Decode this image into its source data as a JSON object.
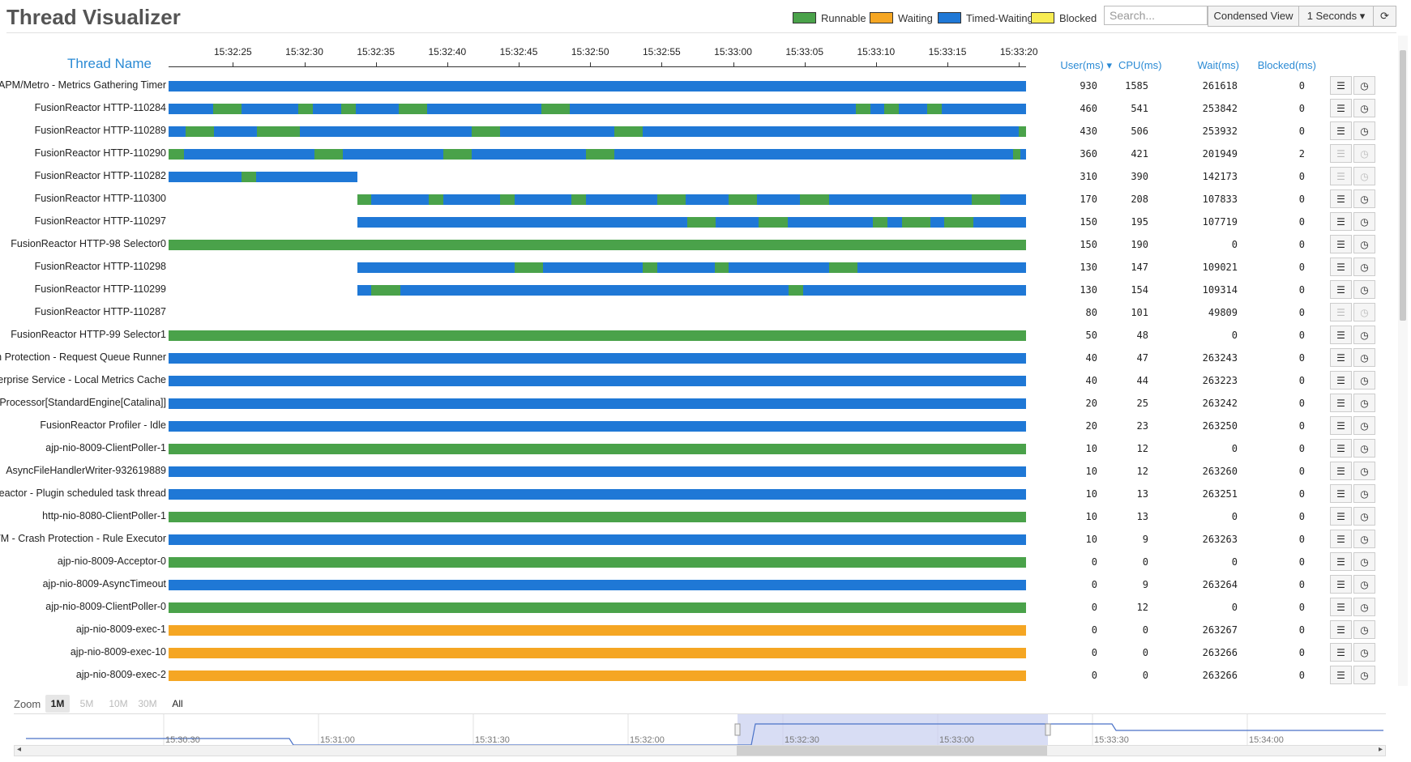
{
  "app": {
    "title": "Thread Visualizer"
  },
  "legend": [
    {
      "label": "Runnable",
      "color": "#4aa24a"
    },
    {
      "label": "Waiting",
      "color": "#f5a623"
    },
    {
      "label": "Timed-Waiting",
      "color": "#1f78d6"
    },
    {
      "label": "Blocked",
      "color": "#f8ec52"
    }
  ],
  "toolbar": {
    "search_placeholder": "Search...",
    "condensed_label": "Condensed View",
    "interval_label": "1 Seconds",
    "refresh_icon": "refresh-icon"
  },
  "columns": {
    "thread_name": "Thread Name",
    "user": "User(ms)",
    "cpu": "CPU(ms)",
    "wait": "Wait(ms)",
    "blocked": "Blocked(ms)"
  },
  "time_ticks": [
    "15:32:25",
    "15:32:30",
    "15:32:35",
    "15:32:40",
    "15:32:45",
    "15:32:50",
    "15:32:55",
    "15:33:00",
    "15:33:05",
    "15:33:10",
    "15:33:15",
    "15:33:20"
  ],
  "timeline": {
    "start": 20.5,
    "end": 80.5
  },
  "threads": [
    {
      "name": "FusionReactor APM/Metro - Metrics Gathering Timer",
      "user": "930",
      "cpu": "1585",
      "wait": "261618",
      "blocked": "0",
      "enabled": true,
      "segs": [
        [
          20.5,
          80.5,
          "T"
        ]
      ]
    },
    {
      "name": "FusionReactor HTTP-110284",
      "user": "460",
      "cpu": "541",
      "wait": "253842",
      "blocked": "0",
      "enabled": true,
      "segs": [
        [
          20.5,
          23.6,
          "T"
        ],
        [
          23.6,
          25.6,
          "R"
        ],
        [
          25.6,
          29.6,
          "T"
        ],
        [
          29.6,
          30.6,
          "R"
        ],
        [
          30.6,
          32.6,
          "T"
        ],
        [
          32.6,
          33.6,
          "R"
        ],
        [
          33.6,
          36.6,
          "T"
        ],
        [
          36.6,
          38.6,
          "R"
        ],
        [
          38.6,
          46.6,
          "T"
        ],
        [
          46.6,
          48.6,
          "R"
        ],
        [
          48.6,
          68.6,
          "T"
        ],
        [
          68.6,
          69.6,
          "R"
        ],
        [
          69.6,
          70.6,
          "T"
        ],
        [
          70.6,
          71.6,
          "R"
        ],
        [
          71.6,
          73.6,
          "T"
        ],
        [
          73.6,
          74.6,
          "R"
        ],
        [
          74.6,
          80.5,
          "T"
        ]
      ]
    },
    {
      "name": "FusionReactor HTTP-110289",
      "user": "430",
      "cpu": "506",
      "wait": "253932",
      "blocked": "0",
      "enabled": true,
      "segs": [
        [
          20.5,
          21.7,
          "T"
        ],
        [
          21.7,
          23.7,
          "R"
        ],
        [
          23.7,
          26.7,
          "T"
        ],
        [
          26.7,
          29.7,
          "R"
        ],
        [
          29.7,
          41.7,
          "T"
        ],
        [
          41.7,
          43.7,
          "R"
        ],
        [
          43.7,
          51.7,
          "T"
        ],
        [
          51.7,
          53.7,
          "R"
        ],
        [
          53.7,
          80.0,
          "T"
        ],
        [
          80.0,
          80.5,
          "R"
        ]
      ]
    },
    {
      "name": "FusionReactor HTTP-110290",
      "user": "360",
      "cpu": "421",
      "wait": "201949",
      "blocked": "2",
      "enabled": false,
      "segs": [
        [
          20.5,
          21.6,
          "R"
        ],
        [
          21.6,
          30.7,
          "T"
        ],
        [
          30.7,
          32.7,
          "R"
        ],
        [
          32.7,
          39.7,
          "T"
        ],
        [
          39.7,
          41.7,
          "R"
        ],
        [
          41.7,
          49.7,
          "T"
        ],
        [
          49.7,
          51.7,
          "R"
        ],
        [
          51.7,
          79.6,
          "T"
        ],
        [
          79.6,
          80.1,
          "R"
        ],
        [
          80.1,
          80.5,
          "T"
        ]
      ]
    },
    {
      "name": "FusionReactor HTTP-110282",
      "user": "310",
      "cpu": "390",
      "wait": "142173",
      "blocked": "0",
      "enabled": false,
      "segs": [
        [
          20.5,
          25.6,
          "T"
        ],
        [
          25.6,
          26.6,
          "R"
        ],
        [
          26.6,
          33.7,
          "T"
        ]
      ]
    },
    {
      "name": "FusionReactor HTTP-110300",
      "user": "170",
      "cpu": "208",
      "wait": "107833",
      "blocked": "0",
      "enabled": true,
      "segs": [
        [
          33.7,
          34.7,
          "R"
        ],
        [
          34.7,
          38.7,
          "T"
        ],
        [
          38.7,
          39.7,
          "R"
        ],
        [
          39.7,
          43.7,
          "T"
        ],
        [
          43.7,
          44.7,
          "R"
        ],
        [
          44.7,
          48.7,
          "T"
        ],
        [
          48.7,
          49.7,
          "R"
        ],
        [
          49.7,
          54.7,
          "T"
        ],
        [
          54.7,
          56.7,
          "R"
        ],
        [
          56.7,
          59.7,
          "T"
        ],
        [
          59.7,
          61.7,
          "R"
        ],
        [
          61.7,
          64.7,
          "T"
        ],
        [
          64.7,
          66.7,
          "R"
        ],
        [
          66.7,
          76.7,
          "T"
        ],
        [
          76.7,
          78.7,
          "R"
        ],
        [
          78.7,
          80.5,
          "T"
        ]
      ]
    },
    {
      "name": "FusionReactor HTTP-110297",
      "user": "150",
      "cpu": "195",
      "wait": "107719",
      "blocked": "0",
      "enabled": true,
      "segs": [
        [
          33.7,
          56.8,
          "T"
        ],
        [
          56.8,
          58.8,
          "R"
        ],
        [
          58.8,
          61.8,
          "T"
        ],
        [
          61.8,
          63.8,
          "R"
        ],
        [
          63.8,
          69.8,
          "T"
        ],
        [
          69.8,
          70.8,
          "R"
        ],
        [
          70.8,
          71.8,
          "T"
        ],
        [
          71.8,
          73.8,
          "R"
        ],
        [
          73.8,
          74.8,
          "T"
        ],
        [
          74.8,
          76.8,
          "R"
        ],
        [
          76.8,
          80.5,
          "T"
        ]
      ]
    },
    {
      "name": "FusionReactor HTTP-98 Selector0",
      "user": "150",
      "cpu": "190",
      "wait": "0",
      "blocked": "0",
      "enabled": true,
      "segs": [
        [
          20.5,
          80.5,
          "R"
        ]
      ]
    },
    {
      "name": "FusionReactor HTTP-110298",
      "user": "130",
      "cpu": "147",
      "wait": "109021",
      "blocked": "0",
      "enabled": true,
      "segs": [
        [
          33.7,
          44.7,
          "T"
        ],
        [
          44.7,
          46.7,
          "R"
        ],
        [
          46.7,
          53.7,
          "T"
        ],
        [
          53.7,
          54.7,
          "R"
        ],
        [
          54.7,
          58.7,
          "T"
        ],
        [
          58.7,
          59.7,
          "R"
        ],
        [
          59.7,
          66.7,
          "T"
        ],
        [
          66.7,
          68.7,
          "R"
        ],
        [
          68.7,
          80.5,
          "T"
        ]
      ]
    },
    {
      "name": "FusionReactor HTTP-110299",
      "user": "130",
      "cpu": "154",
      "wait": "109314",
      "blocked": "0",
      "enabled": true,
      "segs": [
        [
          33.7,
          34.7,
          "T"
        ],
        [
          34.7,
          36.7,
          "R"
        ],
        [
          36.7,
          63.9,
          "T"
        ],
        [
          63.9,
          64.9,
          "R"
        ],
        [
          64.9,
          80.5,
          "T"
        ]
      ]
    },
    {
      "name": "FusionReactor HTTP-110287",
      "user": "80",
      "cpu": "101",
      "wait": "49809",
      "blocked": "0",
      "enabled": false,
      "segs": []
    },
    {
      "name": "FusionReactor HTTP-99 Selector1",
      "user": "50",
      "cpu": "48",
      "wait": "0",
      "blocked": "0",
      "enabled": true,
      "segs": [
        [
          20.5,
          80.5,
          "R"
        ]
      ]
    },
    {
      "name": "FusionReactor Crash Protection - Request Queue Runner",
      "user": "40",
      "cpu": "47",
      "wait": "263243",
      "blocked": "0",
      "enabled": true,
      "segs": [
        [
          20.5,
          80.5,
          "T"
        ]
      ]
    },
    {
      "name": "FusionReactor Enterprise Service - Local Metrics Cache",
      "user": "40",
      "cpu": "44",
      "wait": "263223",
      "blocked": "0",
      "enabled": true,
      "segs": [
        [
          20.5,
          80.5,
          "T"
        ]
      ]
    },
    {
      "name": "ContainerBackgroundProcessor[StandardEngine[Catalina]]",
      "user": "20",
      "cpu": "25",
      "wait": "263242",
      "blocked": "0",
      "enabled": true,
      "segs": [
        [
          20.5,
          80.5,
          "T"
        ]
      ]
    },
    {
      "name": "FusionReactor Profiler - Idle",
      "user": "20",
      "cpu": "23",
      "wait": "263250",
      "blocked": "0",
      "enabled": true,
      "segs": [
        [
          20.5,
          80.5,
          "T"
        ]
      ]
    },
    {
      "name": "ajp-nio-8009-ClientPoller-1",
      "user": "10",
      "cpu": "12",
      "wait": "0",
      "blocked": "0",
      "enabled": true,
      "segs": [
        [
          20.5,
          80.5,
          "R"
        ]
      ]
    },
    {
      "name": "AsyncFileHandlerWriter-932619889",
      "user": "10",
      "cpu": "12",
      "wait": "263260",
      "blocked": "0",
      "enabled": true,
      "segs": [
        [
          20.5,
          80.5,
          "T"
        ]
      ]
    },
    {
      "name": "FusionReactor - Plugin scheduled task thread",
      "user": "10",
      "cpu": "13",
      "wait": "263251",
      "blocked": "0",
      "enabled": true,
      "segs": [
        [
          20.5,
          80.5,
          "T"
        ]
      ]
    },
    {
      "name": "http-nio-8080-ClientPoller-1",
      "user": "10",
      "cpu": "13",
      "wait": "0",
      "blocked": "0",
      "enabled": true,
      "segs": [
        [
          20.5,
          80.5,
          "R"
        ]
      ]
    },
    {
      "name": "FusionReactor JVM - Crash Protection - Rule Executor",
      "user": "10",
      "cpu": "9",
      "wait": "263263",
      "blocked": "0",
      "enabled": true,
      "segs": [
        [
          20.5,
          80.5,
          "T"
        ]
      ]
    },
    {
      "name": "ajp-nio-8009-Acceptor-0",
      "user": "0",
      "cpu": "0",
      "wait": "0",
      "blocked": "0",
      "enabled": true,
      "segs": [
        [
          20.5,
          80.5,
          "R"
        ]
      ]
    },
    {
      "name": "ajp-nio-8009-AsyncTimeout",
      "user": "0",
      "cpu": "9",
      "wait": "263264",
      "blocked": "0",
      "enabled": true,
      "segs": [
        [
          20.5,
          80.5,
          "T"
        ]
      ]
    },
    {
      "name": "ajp-nio-8009-ClientPoller-0",
      "user": "0",
      "cpu": "12",
      "wait": "0",
      "blocked": "0",
      "enabled": true,
      "segs": [
        [
          20.5,
          80.5,
          "R"
        ]
      ]
    },
    {
      "name": "ajp-nio-8009-exec-1",
      "user": "0",
      "cpu": "0",
      "wait": "263267",
      "blocked": "0",
      "enabled": true,
      "segs": [
        [
          20.5,
          80.5,
          "W"
        ]
      ]
    },
    {
      "name": "ajp-nio-8009-exec-10",
      "user": "0",
      "cpu": "0",
      "wait": "263266",
      "blocked": "0",
      "enabled": true,
      "segs": [
        [
          20.5,
          80.5,
          "W"
        ]
      ]
    },
    {
      "name": "ajp-nio-8009-exec-2",
      "user": "0",
      "cpu": "0",
      "wait": "263266",
      "blocked": "0",
      "enabled": true,
      "segs": [
        [
          20.5,
          80.5,
          "W"
        ]
      ]
    }
  ],
  "zoom": {
    "label": "Zoom",
    "options": [
      "1M",
      "5M",
      "10M",
      "30M",
      "All"
    ],
    "active": "1M"
  },
  "navigator": {
    "ticks": [
      "15:30:30",
      "15:31:00",
      "15:31:30",
      "15:32:00",
      "15:32:30",
      "15:33:00",
      "15:33:30",
      "15:34:00"
    ]
  }
}
